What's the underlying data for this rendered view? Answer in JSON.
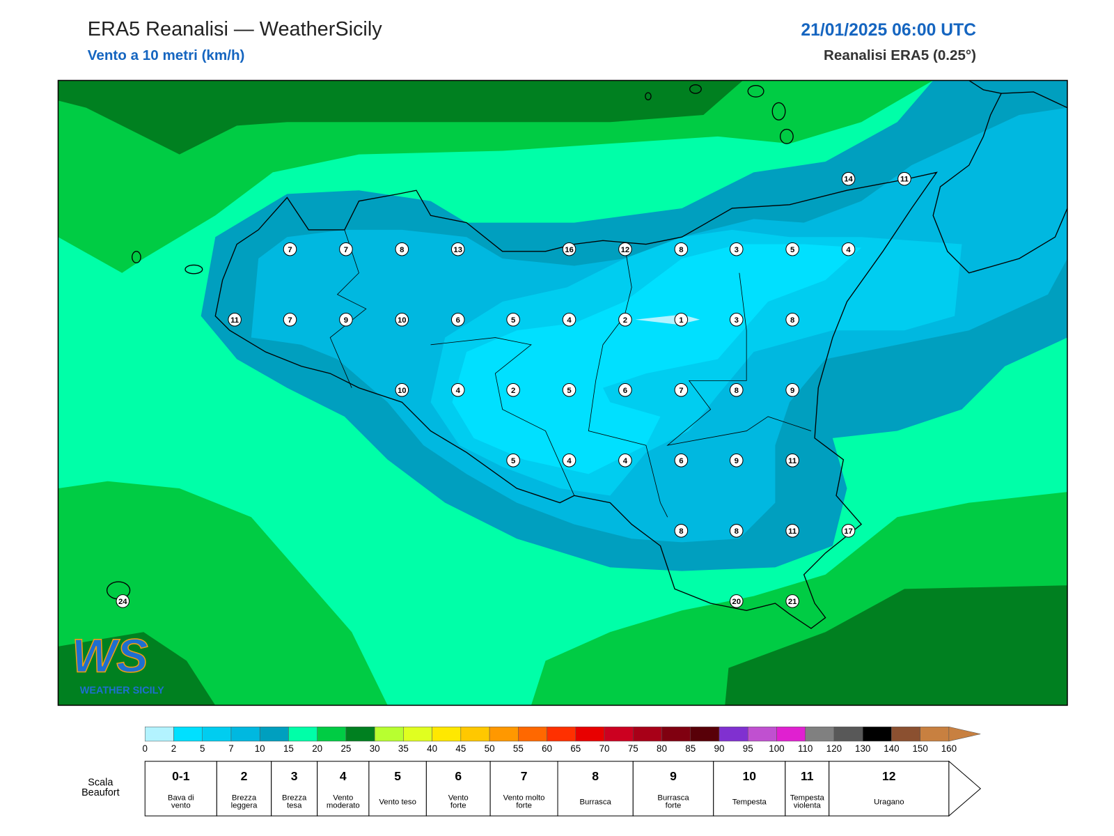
{
  "header": {
    "title": "ERA5 Reanalisi — WeatherSicily",
    "subtitle": "Vento a 10 metri (km/h)",
    "date": "21/01/2025 06:00 UTC",
    "source": "Reanalisi ERA5 (0.25°)"
  },
  "stations": [
    7,
    7,
    8,
    13,
    16,
    12,
    8,
    3,
    5,
    4,
    11,
    7,
    9,
    10,
    6,
    5,
    4,
    2,
    1,
    3,
    8,
    10,
    4,
    2,
    5,
    6,
    7,
    8,
    9,
    5,
    4,
    4,
    6,
    9,
    11,
    8,
    8,
    11,
    17,
    20,
    21,
    14,
    11,
    24
  ],
  "logo": {
    "mark": "WS",
    "text": "WEATHER SICILY"
  },
  "colorbar": {
    "ticks": [
      0,
      2,
      5,
      7,
      10,
      15,
      20,
      25,
      30,
      35,
      40,
      45,
      50,
      55,
      60,
      65,
      70,
      75,
      80,
      85,
      90,
      95,
      100,
      110,
      120,
      130,
      140,
      150,
      160
    ],
    "colors": [
      "#b3f3ff",
      "#00e0ff",
      "#00cdf0",
      "#00b8e0",
      "#009fbf",
      "#00ffa8",
      "#00cc44",
      "#008020",
      "#b8ff30",
      "#e0ff20",
      "#ffe800",
      "#ffc800",
      "#ff9800",
      "#ff6800",
      "#ff3000",
      "#e80000",
      "#cc0020",
      "#a80018",
      "#800010",
      "#580008",
      "#8030d0",
      "#c050d0",
      "#e020d0",
      "#808080",
      "#585858",
      "#000000",
      "#8b5030",
      "#c88040"
    ]
  },
  "beaufort": {
    "label": [
      "Scala",
      "Beaufort"
    ],
    "levels": [
      {
        "force": "0-1",
        "name": [
          "Bava di",
          "vento"
        ]
      },
      {
        "force": "2",
        "name": [
          "Brezza",
          "leggera"
        ]
      },
      {
        "force": "3",
        "name": [
          "Brezza",
          "tesa"
        ]
      },
      {
        "force": "4",
        "name": [
          "Vento",
          "moderato"
        ]
      },
      {
        "force": "5",
        "name": [
          "Vento teso"
        ]
      },
      {
        "force": "6",
        "name": [
          "Vento",
          "forte"
        ]
      },
      {
        "force": "7",
        "name": [
          "Vento molto",
          "forte"
        ]
      },
      {
        "force": "8",
        "name": [
          "Burrasca"
        ]
      },
      {
        "force": "9",
        "name": [
          "Burrasca",
          "forte"
        ]
      },
      {
        "force": "10",
        "name": [
          "Tempesta"
        ]
      },
      {
        "force": "11",
        "name": [
          "Tempesta",
          "violenta"
        ]
      },
      {
        "force": "12",
        "name": [
          "Uragano"
        ]
      }
    ]
  }
}
